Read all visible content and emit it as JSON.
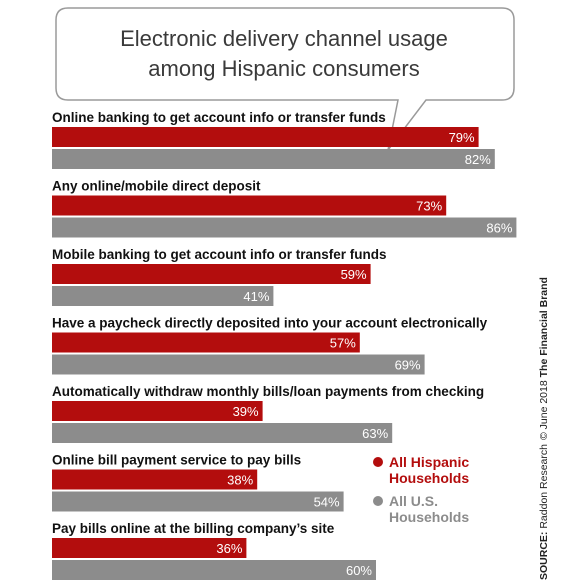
{
  "chart_data": {
    "type": "bar",
    "orientation": "horizontal",
    "title": "Electronic delivery channel usage among Hispanic consumers",
    "title_lines": [
      "Electronic delivery channel usage",
      "among Hispanic consumers"
    ],
    "categories": [
      "Online banking to get account info or transfer funds",
      "Any online/mobile direct deposit",
      "Mobile banking to get account info or transfer funds",
      "Have a paycheck directly deposited into your account electronically",
      "Automatically withdraw monthly bills/loan payments from checking",
      "Online bill payment service to pay bills",
      "Pay bills online at the billing company’s site"
    ],
    "series": [
      {
        "name": "All Hispanic Households",
        "color": "#b30d0d",
        "values": [
          79,
          73,
          59,
          57,
          39,
          38,
          36
        ]
      },
      {
        "name": "All U.S. Households",
        "color": "#8c8c8c",
        "values": [
          82,
          86,
          41,
          69,
          63,
          54,
          60
        ]
      }
    ],
    "value_suffix": "%",
    "legend_position": "right",
    "legend": [
      {
        "line1": "All Hispanic",
        "line2": "Households",
        "color": "#b30d0d"
      },
      {
        "line1": "All U.S.",
        "line2": "Households",
        "color": "#8c8c8c"
      }
    ],
    "grid": false,
    "xlim": [
      0,
      100
    ]
  },
  "source": {
    "label": "SOURCE:",
    "text": " Raddon Research",
    "copyright": "©",
    "date": " June 2018 ",
    "brand": "The Financial Brand"
  }
}
